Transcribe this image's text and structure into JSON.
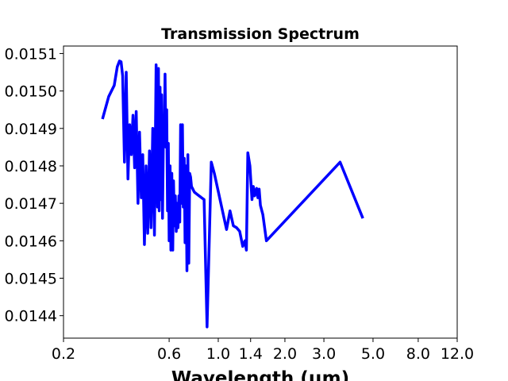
{
  "chart_data": {
    "type": "line",
    "title": "Transmission Spectrum",
    "xlabel": "Wavelength (μm)",
    "ylabel": "",
    "xscale": "log",
    "xlim": [
      0.2,
      12.0
    ],
    "ylim": [
      0.01434,
      0.01512
    ],
    "xticks": [
      {
        "value": 0.2,
        "label": "0.2"
      },
      {
        "value": 0.6,
        "label": "0.6"
      },
      {
        "value": 1.0,
        "label": "1.0"
      },
      {
        "value": 1.4,
        "label": "1.4"
      },
      {
        "value": 2.0,
        "label": "2.0"
      },
      {
        "value": 3.0,
        "label": "3.0"
      },
      {
        "value": 5.0,
        "label": "5.0"
      },
      {
        "value": 8.0,
        "label": "8.0"
      },
      {
        "value": 12.0,
        "label": "12.0"
      }
    ],
    "yticks": [
      {
        "value": 0.0144,
        "label": "0.0144"
      },
      {
        "value": 0.0145,
        "label": "0.0145"
      },
      {
        "value": 0.0146,
        "label": "0.0146"
      },
      {
        "value": 0.0147,
        "label": "0.0147"
      },
      {
        "value": 0.0148,
        "label": "0.0148"
      },
      {
        "value": 0.0149,
        "label": "0.0149"
      },
      {
        "value": 0.015,
        "label": "0.0150"
      },
      {
        "value": 0.0151,
        "label": "0.0151"
      }
    ],
    "grid": false,
    "series": [
      {
        "color": "#0000ff",
        "x": [
          0.3,
          0.32,
          0.339,
          0.35,
          0.358,
          0.364,
          0.37,
          0.377,
          0.384,
          0.391,
          0.398,
          0.405,
          0.412,
          0.419,
          0.426,
          0.434,
          0.441,
          0.449,
          0.456,
          0.464,
          0.472,
          0.48,
          0.489,
          0.497,
          0.506,
          0.515,
          0.524,
          0.532,
          0.537,
          0.541,
          0.546,
          0.55,
          0.555,
          0.56,
          0.565,
          0.57,
          0.575,
          0.58,
          0.585,
          0.59,
          0.595,
          0.6,
          0.606,
          0.611,
          0.617,
          0.623,
          0.628,
          0.634,
          0.64,
          0.646,
          0.652,
          0.658,
          0.664,
          0.67,
          0.676,
          0.682,
          0.689,
          0.695,
          0.702,
          0.708,
          0.715,
          0.722,
          0.729,
          0.736,
          0.743,
          0.75,
          0.757,
          0.765,
          0.772,
          0.78,
          0.787,
          0.795,
          0.803,
          0.811,
          0.819,
          0.828,
          0.836,
          0.845,
          0.854,
          0.863,
          0.89,
          0.93,
          0.96,
          1.09,
          1.13,
          1.17,
          1.21,
          1.25,
          1.29,
          1.32,
          1.34,
          1.36,
          1.39,
          1.42,
          1.44,
          1.46,
          1.49,
          1.51,
          1.53,
          1.55,
          1.59,
          1.65,
          3.55,
          4.5
        ],
        "y": [
          0.014925,
          0.014985,
          0.015015,
          0.015065,
          0.01508,
          0.015078,
          0.01504,
          0.01481,
          0.01505,
          0.014765,
          0.01491,
          0.01483,
          0.014935,
          0.014795,
          0.014945,
          0.0147,
          0.01489,
          0.014715,
          0.01483,
          0.01459,
          0.0148,
          0.01462,
          0.01484,
          0.014635,
          0.0149,
          0.014615,
          0.01507,
          0.01469,
          0.01506,
          0.01468,
          0.01501,
          0.01471,
          0.01499,
          0.01466,
          0.01487,
          0.01486,
          0.015045,
          0.01485,
          0.01495,
          0.01468,
          0.01486,
          0.0146,
          0.0148,
          0.014575,
          0.01478,
          0.014575,
          0.01476,
          0.01464,
          0.01472,
          0.014625,
          0.0147,
          0.014635,
          0.01472,
          0.01465,
          0.01491,
          0.0147,
          0.01491,
          0.01469,
          0.01482,
          0.014595,
          0.0148,
          0.01452,
          0.01483,
          0.01454,
          0.01478,
          0.01477,
          0.014745,
          0.01474,
          0.014735,
          0.01473,
          0.014728,
          0.014726,
          0.014724,
          0.014722,
          0.01472,
          0.014718,
          0.014716,
          0.014714,
          0.014712,
          0.01471,
          0.01437,
          0.01481,
          0.01478,
          0.01463,
          0.01468,
          0.01464,
          0.014635,
          0.014625,
          0.014585,
          0.0146,
          0.014575,
          0.014835,
          0.0148,
          0.01471,
          0.014745,
          0.01472,
          0.01474,
          0.014715,
          0.014738,
          0.014695,
          0.01467,
          0.0146,
          0.01481,
          0.01466
        ]
      }
    ]
  }
}
